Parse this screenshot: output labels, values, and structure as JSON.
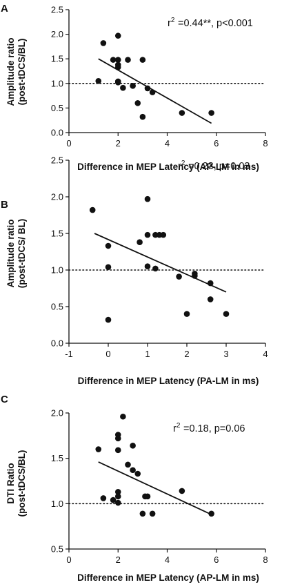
{
  "chart_data": [
    {
      "type": "scatter",
      "panel": "A",
      "xlabel": "Difference in MEP Latency (AP-LM in ms)",
      "ylabel_line1": "Amplitude ratio",
      "ylabel_line2": "(post-tDCS/BL)",
      "stat_label": "=0.44**, p<0.001",
      "xlim": [
        0,
        8
      ],
      "ylim": [
        0,
        2.5
      ],
      "xticks": [
        0,
        2,
        4,
        6,
        8
      ],
      "yticks": [
        0,
        0.5,
        1.0,
        1.5,
        2.0,
        2.5
      ],
      "ytick_labels": [
        "0.0",
        "0.5",
        "1.0",
        "1.5",
        "2.0",
        "2.5"
      ],
      "reference_y": 1.0,
      "fit_line": [
        [
          1.2,
          1.5
        ],
        [
          5.8,
          0.19
        ]
      ],
      "points": [
        [
          1.2,
          1.05
        ],
        [
          1.4,
          1.82
        ],
        [
          1.8,
          1.48
        ],
        [
          2.0,
          1.97
        ],
        [
          2.0,
          1.48
        ],
        [
          2.0,
          1.38
        ],
        [
          2.0,
          1.33
        ],
        [
          2.0,
          1.04
        ],
        [
          2.0,
          1.02
        ],
        [
          2.2,
          0.91
        ],
        [
          2.4,
          1.48
        ],
        [
          2.6,
          0.95
        ],
        [
          2.8,
          0.6
        ],
        [
          3.0,
          0.32
        ],
        [
          3.0,
          1.48
        ],
        [
          3.2,
          0.9
        ],
        [
          3.4,
          0.82
        ],
        [
          4.6,
          0.4
        ],
        [
          5.8,
          0.4
        ]
      ]
    },
    {
      "type": "scatter",
      "panel": "B",
      "xlabel": "Difference in MEP Latency (PA-LM in ms)",
      "ylabel_line1": "Amplitude ratio",
      "ylabel_line2": "(post-tDCS/ BL)",
      "stat_label": "=0.23, p=0.03",
      "xlim": [
        -1,
        4
      ],
      "ylim": [
        0,
        2.5
      ],
      "xticks": [
        -1,
        0,
        1,
        2,
        3,
        4
      ],
      "yticks": [
        0,
        0.5,
        1.0,
        1.5,
        2.0,
        2.5
      ],
      "ytick_labels": [
        "0.0",
        "0.5",
        "1.0",
        "1.5",
        "2.0",
        "2.5"
      ],
      "reference_y": 1.0,
      "fit_line": [
        [
          -0.35,
          1.5
        ],
        [
          3.0,
          0.7
        ]
      ],
      "points": [
        [
          -0.4,
          1.82
        ],
        [
          0.0,
          1.33
        ],
        [
          0.0,
          1.04
        ],
        [
          0.0,
          0.32
        ],
        [
          0.8,
          1.38
        ],
        [
          1.0,
          1.97
        ],
        [
          1.0,
          1.48
        ],
        [
          1.0,
          1.05
        ],
        [
          1.2,
          1.48
        ],
        [
          1.2,
          1.02
        ],
        [
          1.3,
          1.48
        ],
        [
          1.4,
          1.48
        ],
        [
          1.8,
          0.91
        ],
        [
          2.0,
          0.4
        ],
        [
          2.2,
          0.95
        ],
        [
          2.2,
          0.92
        ],
        [
          2.6,
          0.82
        ],
        [
          2.6,
          0.6
        ],
        [
          3.0,
          0.4
        ]
      ]
    },
    {
      "type": "scatter",
      "panel": "C",
      "xlabel": "Difference in MEP Latency (AP-LM in ms)",
      "ylabel_line1": "DTI Ratio",
      "ylabel_line2": "(post-tDCS/BL)",
      "stat_label": "=0.18, p=0.06",
      "xlim": [
        0,
        8
      ],
      "ylim": [
        0.5,
        2.0
      ],
      "xticks": [
        0,
        2,
        4,
        6,
        8
      ],
      "yticks": [
        0.5,
        1.0,
        1.5,
        2.0
      ],
      "ytick_labels": [
        "0.5",
        "1.0",
        "1.5",
        "2.0"
      ],
      "reference_y": 1.0,
      "fit_line": [
        [
          1.2,
          1.46
        ],
        [
          5.8,
          0.88
        ]
      ],
      "points": [
        [
          1.2,
          1.6
        ],
        [
          1.4,
          1.06
        ],
        [
          1.8,
          1.04
        ],
        [
          2.0,
          1.76
        ],
        [
          2.0,
          1.72
        ],
        [
          2.0,
          1.59
        ],
        [
          2.0,
          1.13
        ],
        [
          2.0,
          1.08
        ],
        [
          2.0,
          1.01
        ],
        [
          2.2,
          1.96
        ],
        [
          2.4,
          1.43
        ],
        [
          2.6,
          1.64
        ],
        [
          2.6,
          1.37
        ],
        [
          2.8,
          1.33
        ],
        [
          3.0,
          0.89
        ],
        [
          3.1,
          1.08
        ],
        [
          3.2,
          1.08
        ],
        [
          3.4,
          0.89
        ],
        [
          4.6,
          1.14
        ],
        [
          5.8,
          0.89
        ]
      ]
    }
  ]
}
